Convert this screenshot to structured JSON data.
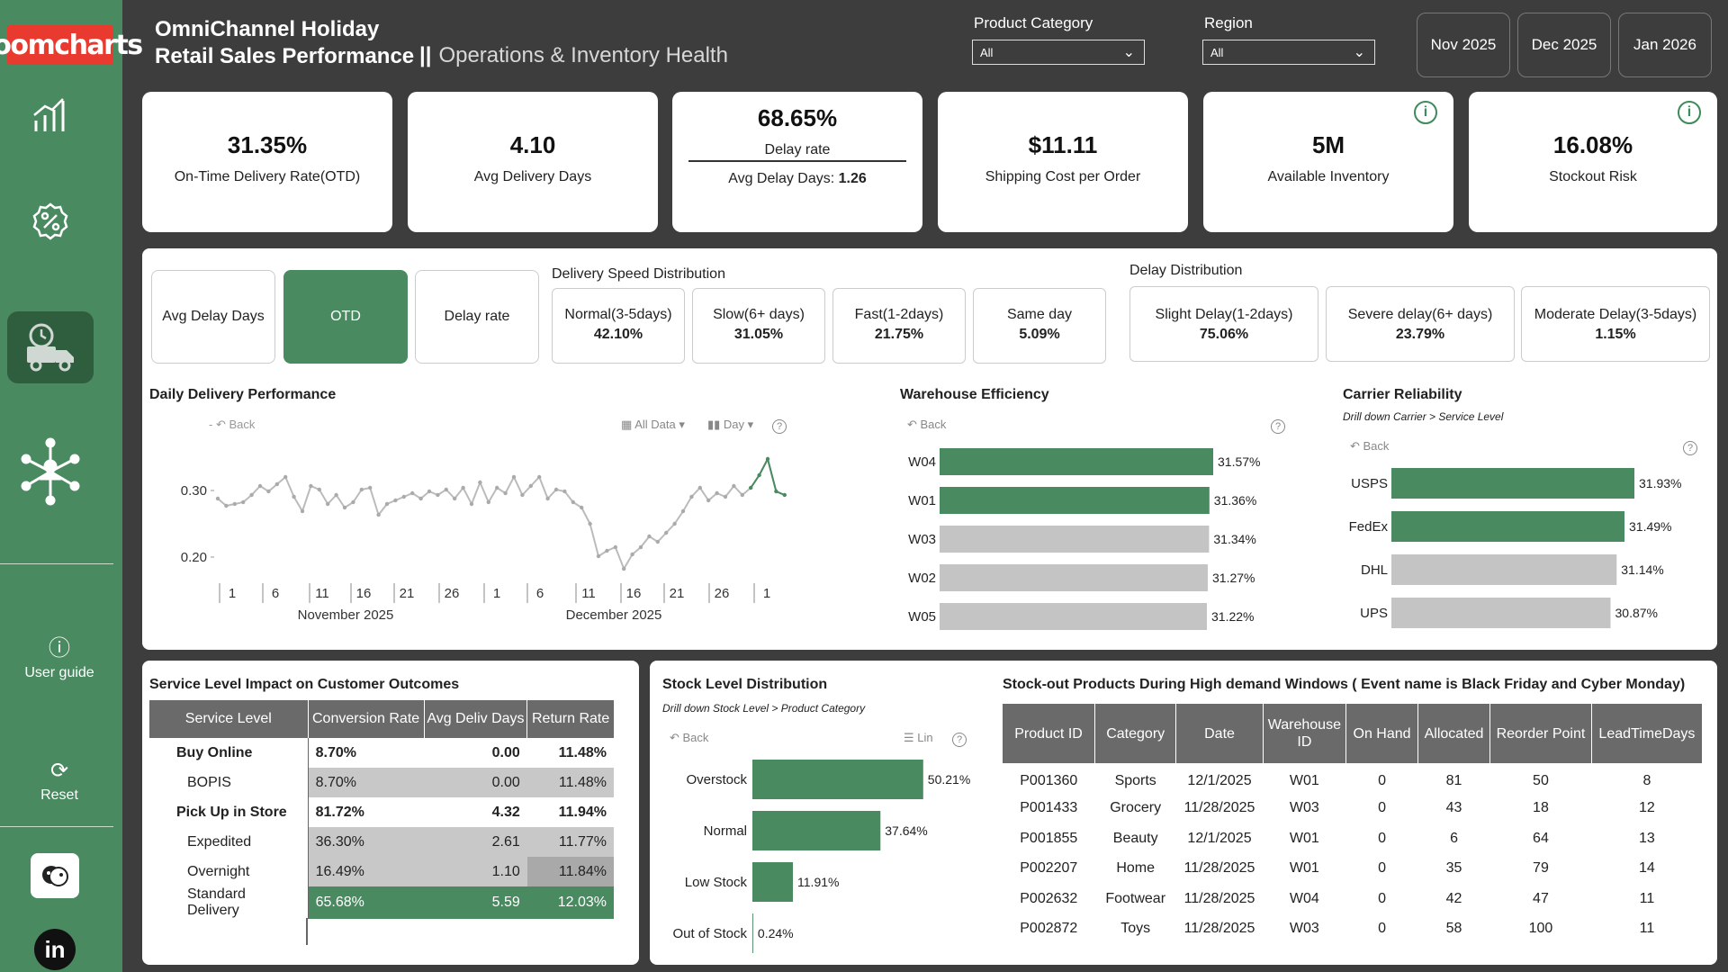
{
  "brand": "zoomcharts",
  "sidebar": {
    "user_guide": "User guide",
    "reset": "Reset"
  },
  "header": {
    "title_line1": "OmniChannel Holiday",
    "title_line2": "Retail Sales Performance",
    "divider": "||",
    "subtitle": "Operations & Inventory Health"
  },
  "filters": {
    "product_category": {
      "label": "Product Category",
      "value": "All"
    },
    "region": {
      "label": "Region",
      "value": "All"
    }
  },
  "date_buttons": [
    "Nov 2025",
    "Dec 2025",
    "Jan 2026"
  ],
  "kpis": {
    "otd": {
      "value": "31.35%",
      "label": "On-Time Delivery Rate(OTD)"
    },
    "avg_delivery": {
      "value": "4.10",
      "label": "Avg Delivery Days"
    },
    "delay": {
      "value": "68.65%",
      "label": "Delay rate",
      "sub_label": "Avg Delay Days:",
      "sub_value": "1.26"
    },
    "shipping": {
      "value": "$11.11",
      "label": "Shipping Cost per Order"
    },
    "inventory": {
      "value": "5M",
      "label": "Available Inventory"
    },
    "stockout": {
      "value": "16.08%",
      "label": "Stockout Risk"
    }
  },
  "toggles": [
    "Avg Delay Days",
    "OTD",
    "Delay rate"
  ],
  "delivery_speed": {
    "title": "Delivery Speed Distribution",
    "items": [
      {
        "name": "Normal(3-5days)",
        "value": "42.10%"
      },
      {
        "name": "Slow(6+ days)",
        "value": "31.05%"
      },
      {
        "name": "Fast(1-2days)",
        "value": "21.75%"
      },
      {
        "name": "Same day",
        "value": "5.09%"
      }
    ]
  },
  "delay_dist": {
    "title": "Delay Distribution",
    "items": [
      {
        "name": "Slight Delay(1-2days)",
        "value": "75.06%"
      },
      {
        "name": "Severe delay(6+ days)",
        "value": "23.79%"
      },
      {
        "name": "Moderate Delay(3-5days)",
        "value": "1.15%"
      }
    ]
  },
  "daily_chart": {
    "title": "Daily Delivery Performance",
    "back": "Back",
    "all_data": "All Data",
    "day": "Day",
    "yticks": [
      "0.30",
      "0.20"
    ],
    "xticks": [
      "1",
      "6",
      "11",
      "16",
      "21",
      "26",
      "1",
      "6",
      "11",
      "16",
      "21",
      "26",
      "1"
    ],
    "months": [
      "November 2025",
      "December 2025"
    ]
  },
  "warehouse": {
    "title": "Warehouse Efficiency",
    "back": "Back",
    "bars": [
      {
        "name": "W04",
        "value": 31.57,
        "label": "31.57%",
        "highlight": true
      },
      {
        "name": "W01",
        "value": 31.36,
        "label": "31.36%",
        "highlight": true
      },
      {
        "name": "W03",
        "value": 31.34,
        "label": "31.34%",
        "highlight": false
      },
      {
        "name": "W02",
        "value": 31.27,
        "label": "31.27%",
        "highlight": false
      },
      {
        "name": "W05",
        "value": 31.22,
        "label": "31.22%",
        "highlight": false
      }
    ]
  },
  "carrier": {
    "title": "Carrier Reliability",
    "note": "Drill down Carrier > Service Level",
    "back": "Back",
    "bars": [
      {
        "name": "USPS",
        "value": 31.93,
        "label": "31.93%",
        "highlight": true
      },
      {
        "name": "FedEx",
        "value": 31.49,
        "label": "31.49%",
        "highlight": true
      },
      {
        "name": "DHL",
        "value": 31.14,
        "label": "31.14%",
        "highlight": false
      },
      {
        "name": "UPS",
        "value": 30.87,
        "label": "30.87%",
        "highlight": false
      }
    ]
  },
  "service_table": {
    "title": "Service Level Impact on Customer Outcomes",
    "headers": [
      "Service Level",
      "Conversion Rate",
      "Avg Deliv Days",
      "Return Rate"
    ],
    "rows": [
      {
        "name": "Buy Online",
        "conv": "8.70%",
        "days": "0.00",
        "ret": "11.48%",
        "group": true
      },
      {
        "name": "BOPIS",
        "conv": "8.70%",
        "days": "0.00",
        "ret": "11.48%",
        "group": false
      },
      {
        "name": "Pick Up in Store",
        "conv": "81.72%",
        "days": "4.32",
        "ret": "11.94%",
        "group": true
      },
      {
        "name": "Expedited",
        "conv": "36.30%",
        "days": "2.61",
        "ret": "11.77%",
        "group": false
      },
      {
        "name": "Overnight",
        "conv": "16.49%",
        "days": "1.10",
        "ret": "11.84%",
        "group": false
      },
      {
        "name": "Standard Delivery",
        "conv": "65.68%",
        "days": "5.59",
        "ret": "12.03%",
        "group": false
      }
    ]
  },
  "stock_level": {
    "title": "Stock Level Distribution",
    "note": "Drill down Stock Level > Product Category",
    "back": "Back",
    "lin": "Lin",
    "bars": [
      {
        "name": "Overstock",
        "value": 50.21,
        "label": "50.21%"
      },
      {
        "name": "Normal",
        "value": 37.64,
        "label": "37.64%"
      },
      {
        "name": "Low Stock",
        "value": 11.91,
        "label": "11.91%"
      },
      {
        "name": "Out of Stock",
        "value": 0.24,
        "label": "0.24%"
      }
    ]
  },
  "stockout_table": {
    "title": "Stock-out Products During High demand Windows ( Event name is Black Friday and Cyber Monday)",
    "headers": [
      "Product ID",
      "Category",
      "Date",
      "Warehouse ID",
      "On Hand",
      "Allocated",
      "Reorder Point",
      "LeadTimeDays"
    ],
    "rows": [
      [
        "P001360",
        "Sports",
        "12/1/2025",
        "W01",
        "0",
        "81",
        "50",
        "8"
      ],
      [
        "P001433",
        "Grocery",
        "11/28/2025",
        "W03",
        "0",
        "43",
        "18",
        "12"
      ],
      [
        "P001855",
        "Beauty",
        "12/1/2025",
        "W01",
        "0",
        "6",
        "64",
        "13"
      ],
      [
        "P002207",
        "Home",
        "11/28/2025",
        "W01",
        "0",
        "35",
        "79",
        "14"
      ],
      [
        "P002632",
        "Footwear",
        "11/28/2025",
        "W04",
        "0",
        "42",
        "47",
        "11"
      ],
      [
        "P002872",
        "Toys",
        "11/28/2025",
        "W03",
        "0",
        "58",
        "100",
        "11"
      ]
    ]
  },
  "colors": {
    "green": "#4a8a60",
    "dark_green": "#2f5e3f",
    "gray_bar": "#c4c4c4",
    "header_gray": "#6a6a6a"
  }
}
